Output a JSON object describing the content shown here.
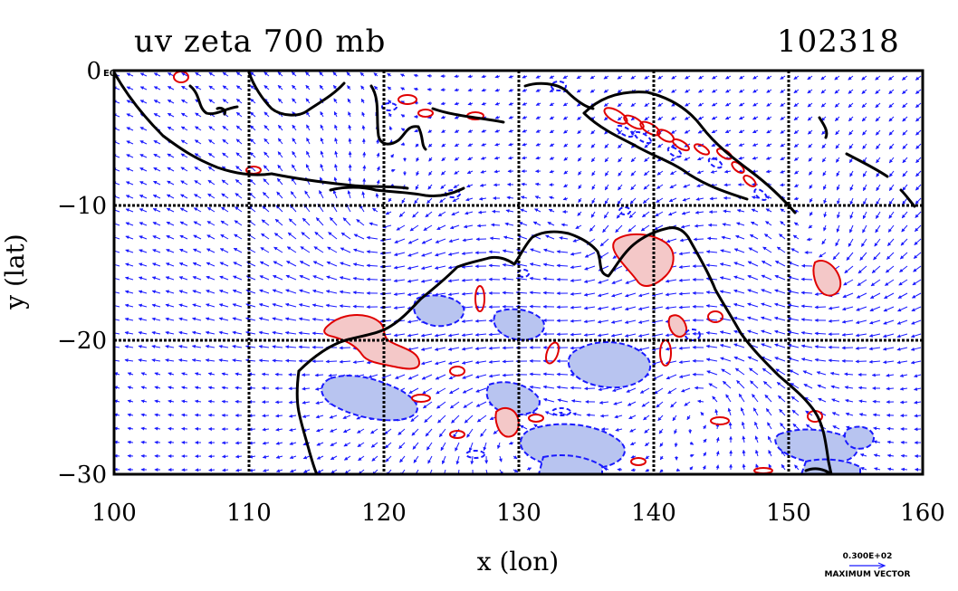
{
  "title": {
    "left": "uv zeta 700 mb",
    "right": "102318"
  },
  "axes": {
    "xlabel": "x (lon)",
    "ylabel": "y (lat)",
    "x_ticks": [
      "100",
      "110",
      "120",
      "130",
      "140",
      "150",
      "160"
    ],
    "y_ticks": [
      "0",
      "−10",
      "−20",
      "−30"
    ],
    "x_range": [
      100,
      160
    ],
    "y_range": [
      -30,
      0
    ],
    "grid": true,
    "corner_mark": "E0"
  },
  "legend": {
    "max_vector_value": "0.300E+02",
    "max_vector_label": "MAXIMUM VECTOR"
  },
  "colors": {
    "vector": "#1a1aff",
    "positive_contour": "#e00000",
    "positive_fill": "#f4c8c8",
    "negative_contour": "#1a1aff",
    "negative_fill": "#b8c4f0",
    "coast": "#000000"
  }
}
